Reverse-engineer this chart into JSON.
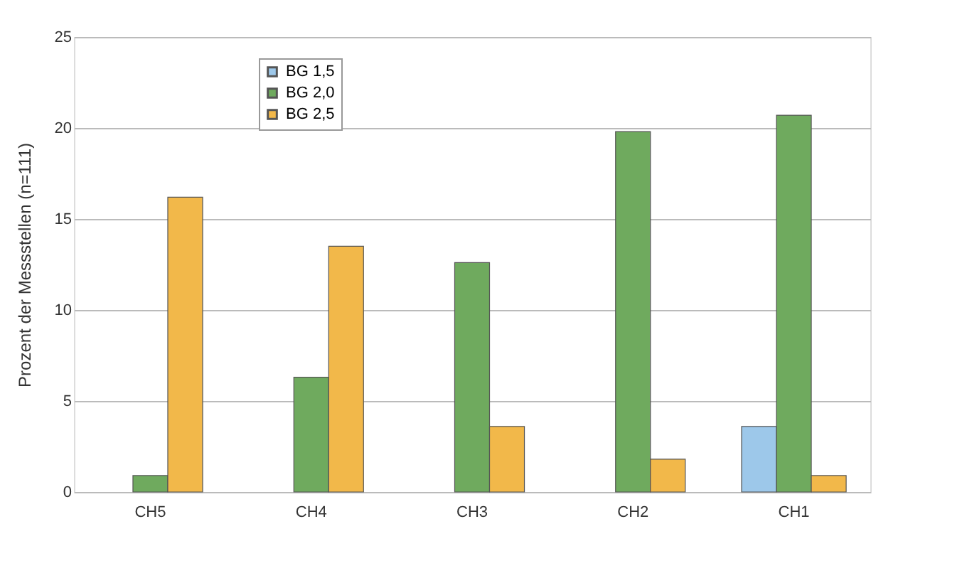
{
  "chart_data": {
    "type": "bar",
    "ylabel": "Prozent der Messstellen (n=111)",
    "categories": [
      "CH5",
      "CH4",
      "CH3",
      "CH2",
      "CH1"
    ],
    "series": [
      {
        "name": "BG 1,5",
        "color": "#9dc8ea",
        "values": [
          null,
          null,
          null,
          null,
          3.6
        ]
      },
      {
        "name": "BG 2,0",
        "color": "#6faa5e",
        "values": [
          0.9,
          6.3,
          12.6,
          19.8,
          20.7
        ]
      },
      {
        "name": "BG 2,5",
        "color": "#f2b84a",
        "values": [
          16.2,
          13.5,
          3.6,
          1.8,
          0.9
        ]
      }
    ],
    "ylim": [
      0,
      25
    ],
    "yticks": [
      0,
      5,
      10,
      15,
      20,
      25
    ],
    "grid": "y",
    "legend": "top left"
  }
}
